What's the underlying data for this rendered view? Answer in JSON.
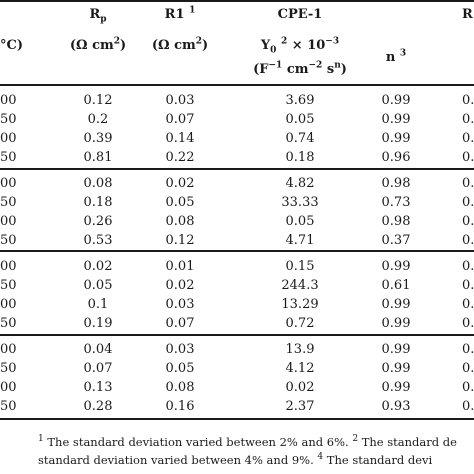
{
  "header": {
    "temp_col_fragment": "°C)",
    "rp_label": "R",
    "rp_sub": "p",
    "rp_unit": "(Ω cm",
    "rp_unit_sup": "2",
    "rp_unit_close": ")",
    "r1_label": "R1",
    "r1_note": "1",
    "r1_unit": "(Ω cm",
    "r1_unit_sup": "2",
    "r1_unit_close": ")",
    "cpe_label": "CPE-1",
    "y0_label": "Y",
    "y0_sub": "0",
    "y0_note": "2",
    "y0_scale": "× 10",
    "y0_exp": "−3",
    "y0_unit_open": "(F",
    "y0_unit_exp1": "−1",
    "y0_unit_mid": " cm",
    "y0_unit_exp2": "−2",
    "y0_unit_s": " s",
    "y0_unit_exp3": "n",
    "y0_unit_close": ")",
    "n_label": "n",
    "n_note": "3",
    "right_fragment": "R"
  },
  "table": {
    "groups": [
      {
        "rows": [
          {
            "temp": "00",
            "rp": "0.12",
            "r1": "0.03",
            "y0": "3.69",
            "n": "0.99",
            "extra": "0."
          },
          {
            "temp": "50",
            "rp": "0.2",
            "r1": "0.07",
            "y0": "0.05",
            "n": "0.99",
            "extra": "0."
          },
          {
            "temp": "00",
            "rp": "0.39",
            "r1": "0.14",
            "y0": "0.74",
            "n": "0.99",
            "extra": "0."
          },
          {
            "temp": "50",
            "rp": "0.81",
            "r1": "0.22",
            "y0": "0.18",
            "n": "0.96",
            "extra": "0."
          }
        ]
      },
      {
        "rows": [
          {
            "temp": "00",
            "rp": "0.08",
            "r1": "0.02",
            "y0": "4.82",
            "n": "0.98",
            "extra": "0."
          },
          {
            "temp": "50",
            "rp": "0.18",
            "r1": "0.05",
            "y0": "33.33",
            "n": "0.73",
            "extra": "0."
          },
          {
            "temp": "00",
            "rp": "0.26",
            "r1": "0.08",
            "y0": "0.05",
            "n": "0.98",
            "extra": "0."
          },
          {
            "temp": "50",
            "rp": "0.53",
            "r1": "0.12",
            "y0": "4.71",
            "n": "0.37",
            "extra": "0."
          }
        ]
      },
      {
        "rows": [
          {
            "temp": "00",
            "rp": "0.02",
            "r1": "0.01",
            "y0": "0.15",
            "n": "0.99",
            "extra": "0."
          },
          {
            "temp": "50",
            "rp": "0.05",
            "r1": "0.02",
            "y0": "244.3",
            "n": "0.61",
            "extra": "0."
          },
          {
            "temp": "00",
            "rp": "0.1",
            "r1": "0.03",
            "y0": "13.29",
            "n": "0.99",
            "extra": "0."
          },
          {
            "temp": "50",
            "rp": "0.19",
            "r1": "0.07",
            "y0": "0.72",
            "n": "0.99",
            "extra": "0."
          }
        ]
      },
      {
        "rows": [
          {
            "temp": "00",
            "rp": "0.04",
            "r1": "0.03",
            "y0": "13.9",
            "n": "0.99",
            "extra": "0."
          },
          {
            "temp": "50",
            "rp": "0.07",
            "r1": "0.05",
            "y0": "4.12",
            "n": "0.99",
            "extra": "0."
          },
          {
            "temp": "00",
            "rp": "0.13",
            "r1": "0.08",
            "y0": "0.02",
            "n": "0.99",
            "extra": "0."
          },
          {
            "temp": "50",
            "rp": "0.28",
            "r1": "0.16",
            "y0": "2.37",
            "n": "0.93",
            "extra": "0."
          }
        ]
      }
    ]
  },
  "footnotes": {
    "line1_note1": "1",
    "line1_text1": " The standard deviation varied between 2% and 6%. ",
    "line1_note2": "2",
    "line1_text2": " The standard de",
    "line2_text1": "standard deviation varied between 4% and 9%. ",
    "line2_note4": "4",
    "line2_text2": " The standard devi"
  }
}
